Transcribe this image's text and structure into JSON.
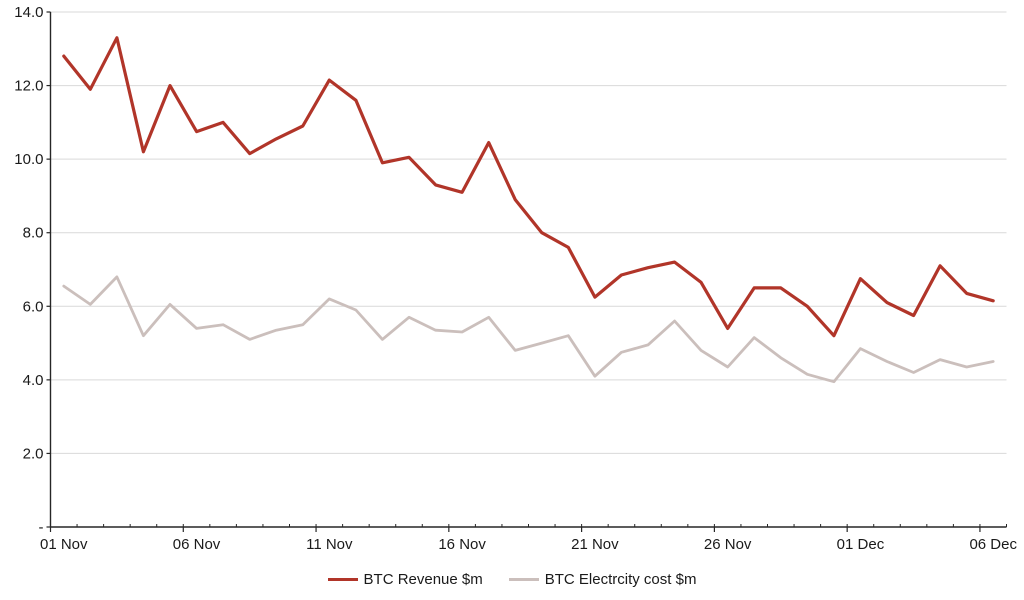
{
  "chart_data": {
    "type": "line",
    "title": "",
    "xlabel": "",
    "ylabel": "",
    "ylim": [
      0,
      14
    ],
    "grid": "horizontal",
    "legend_position": "bottom",
    "background": "#FFFFFF",
    "grid_color": "#D9D9D9",
    "axis_color": "#262626",
    "label_color": "#1a1a1a",
    "categories": [
      "01 Nov",
      "02 Nov",
      "03 Nov",
      "04 Nov",
      "05 Nov",
      "06 Nov",
      "07 Nov",
      "08 Nov",
      "09 Nov",
      "10 Nov",
      "11 Nov",
      "12 Nov",
      "13 Nov",
      "14 Nov",
      "15 Nov",
      "16 Nov",
      "17 Nov",
      "18 Nov",
      "19 Nov",
      "20 Nov",
      "21 Nov",
      "22 Nov",
      "23 Nov",
      "24 Nov",
      "25 Nov",
      "26 Nov",
      "27 Nov",
      "28 Nov",
      "29 Nov",
      "30 Nov",
      "01 Dec",
      "02 Dec",
      "03 Dec",
      "04 Dec",
      "05 Dec",
      "06 Dec"
    ],
    "series": [
      {
        "name": "BTC Revenue $m",
        "color": "#B13529",
        "stroke_width": 3.2,
        "values": [
          12.8,
          11.9,
          13.3,
          10.2,
          12.0,
          10.75,
          11.0,
          10.15,
          10.55,
          10.9,
          12.15,
          11.6,
          9.9,
          10.05,
          9.3,
          9.1,
          10.45,
          8.9,
          8.0,
          7.6,
          6.25,
          6.85,
          7.05,
          7.2,
          6.65,
          5.4,
          6.5,
          6.5,
          6.0,
          5.2,
          6.75,
          6.1,
          5.75,
          7.1,
          6.35,
          6.15
        ]
      },
      {
        "name": "BTC Electrcity cost $m",
        "color": "#CBBFBC",
        "stroke_width": 2.8,
        "values": [
          6.55,
          6.05,
          6.8,
          5.2,
          6.05,
          5.4,
          5.5,
          5.1,
          5.35,
          5.5,
          6.2,
          5.9,
          5.1,
          5.7,
          5.35,
          5.3,
          5.7,
          4.8,
          5.0,
          5.2,
          4.1,
          4.75,
          4.95,
          5.6,
          4.8,
          4.35,
          5.15,
          4.6,
          4.15,
          3.95,
          4.85,
          4.5,
          4.2,
          4.55,
          4.35,
          4.5
        ]
      }
    ],
    "y_ticks": [
      {
        "value": 0,
        "label": "-"
      },
      {
        "value": 2,
        "label": "2.0"
      },
      {
        "value": 4,
        "label": "4.0"
      },
      {
        "value": 6,
        "label": "6.0"
      },
      {
        "value": 8,
        "label": "8.0"
      },
      {
        "value": 10,
        "label": "10.0"
      },
      {
        "value": 12,
        "label": "12.0"
      },
      {
        "value": 14,
        "label": "14.0"
      }
    ],
    "x_ticks": [
      {
        "index": 0,
        "label": "01 Nov"
      },
      {
        "index": 5,
        "label": "06 Nov"
      },
      {
        "index": 10,
        "label": "11 Nov"
      },
      {
        "index": 15,
        "label": "16 Nov"
      },
      {
        "index": 20,
        "label": "21 Nov"
      },
      {
        "index": 25,
        "label": "26 Nov"
      },
      {
        "index": 30,
        "label": "01 Dec"
      },
      {
        "index": 35,
        "label": "06 Dec"
      }
    ]
  }
}
